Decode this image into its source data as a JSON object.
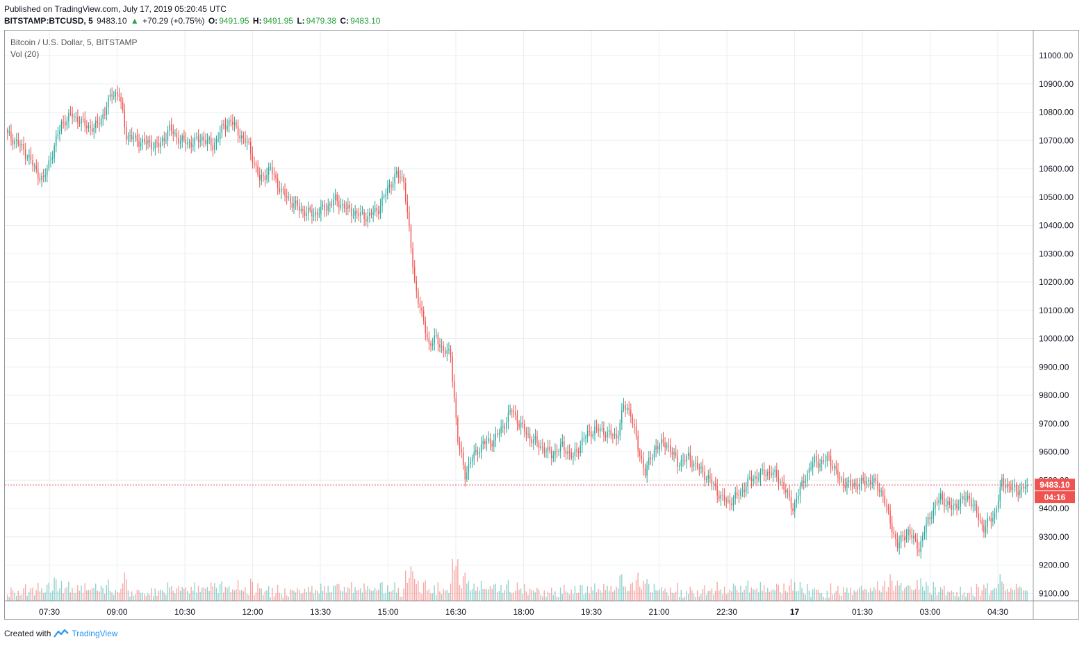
{
  "header": {
    "published": "Published on TradingView.com, July 17, 2019 05:20:45 UTC",
    "symbol": "BITSTAMP:BTCUSD, 5",
    "last": "9483.10",
    "change": "+70.29 (+0.75%)",
    "open_label": "O:",
    "open": "9491.95",
    "high_label": "H:",
    "high": "9491.95",
    "low_label": "L:",
    "low": "9479.38",
    "close_label": "C:",
    "close": "9483.10"
  },
  "legend": {
    "series": "Bitcoin / U.S. Dollar, 5, BITSTAMP",
    "volume": "Vol (20)"
  },
  "footer": {
    "created_with": "Created with",
    "brand": "TradingView"
  },
  "colors": {
    "up": "#26a69a",
    "down": "#ef5350",
    "grid": "#e9eef2",
    "price_line": "#ef5350"
  },
  "chart_data": {
    "type": "candlestick",
    "symbol": "BTCUSD",
    "interval": "5",
    "y_ticks": [
      "11000.00",
      "10900.00",
      "10800.00",
      "10700.00",
      "10600.00",
      "10500.00",
      "10400.00",
      "10300.00",
      "10200.00",
      "10100.00",
      "10000.00",
      "9900.00",
      "9800.00",
      "9700.00",
      "9600.00",
      "9500.00",
      "9400.00",
      "9300.00",
      "9200.00",
      "9100.00"
    ],
    "x_ticks": [
      "07:30",
      "09:00",
      "10:30",
      "12:00",
      "13:30",
      "15:00",
      "16:30",
      "18:00",
      "19:30",
      "21:00",
      "22:30",
      "17",
      "01:30",
      "03:00",
      "04:30"
    ],
    "ylim": [
      9070,
      11080
    ],
    "current_price": "9483.10",
    "countdown": "04:16",
    "close_path": [
      [
        10720,
        0
      ],
      [
        10690,
        6
      ],
      [
        10640,
        12
      ],
      [
        10590,
        16
      ],
      [
        10560,
        20
      ],
      [
        10640,
        24
      ],
      [
        10760,
        30
      ],
      [
        10790,
        36
      ],
      [
        10760,
        42
      ],
      [
        10740,
        48
      ],
      [
        10800,
        54
      ],
      [
        10870,
        58
      ],
      [
        10860,
        62
      ],
      [
        10720,
        66
      ],
      [
        10700,
        72
      ],
      [
        10690,
        78
      ],
      [
        10680,
        84
      ],
      [
        10740,
        90
      ],
      [
        10700,
        96
      ],
      [
        10690,
        102
      ],
      [
        10710,
        108
      ],
      [
        10680,
        114
      ],
      [
        10750,
        120
      ],
      [
        10770,
        124
      ],
      [
        10730,
        128
      ],
      [
        10680,
        134
      ],
      [
        10560,
        140
      ],
      [
        10600,
        146
      ],
      [
        10520,
        152
      ],
      [
        10480,
        158
      ],
      [
        10450,
        164
      ],
      [
        10440,
        170
      ],
      [
        10460,
        176
      ],
      [
        10490,
        182
      ],
      [
        10460,
        188
      ],
      [
        10440,
        194
      ],
      [
        10430,
        200
      ],
      [
        10460,
        206
      ],
      [
        10540,
        212
      ],
      [
        10580,
        216
      ],
      [
        10560,
        220
      ],
      [
        10200,
        226
      ],
      [
        10080,
        230
      ],
      [
        9980,
        234
      ],
      [
        10000,
        238
      ],
      [
        9960,
        242
      ],
      [
        9940,
        246
      ],
      [
        9640,
        250
      ],
      [
        9520,
        254
      ],
      [
        9580,
        258
      ],
      [
        9630,
        264
      ],
      [
        9640,
        270
      ],
      [
        9700,
        276
      ],
      [
        9750,
        280
      ],
      [
        9700,
        284
      ],
      [
        9650,
        290
      ],
      [
        9620,
        296
      ],
      [
        9590,
        302
      ],
      [
        9620,
        308
      ],
      [
        9580,
        314
      ],
      [
        9650,
        320
      ],
      [
        9680,
        326
      ],
      [
        9670,
        332
      ],
      [
        9650,
        338
      ],
      [
        9760,
        342
      ],
      [
        9740,
        346
      ],
      [
        9610,
        350
      ],
      [
        9530,
        354
      ],
      [
        9620,
        360
      ],
      [
        9630,
        366
      ],
      [
        9560,
        372
      ],
      [
        9580,
        378
      ],
      [
        9540,
        384
      ],
      [
        9500,
        390
      ],
      [
        9440,
        396
      ],
      [
        9420,
        400
      ],
      [
        9450,
        406
      ],
      [
        9500,
        412
      ],
      [
        9520,
        418
      ],
      [
        9530,
        424
      ],
      [
        9490,
        430
      ],
      [
        9400,
        436
      ],
      [
        9500,
        442
      ],
      [
        9570,
        448
      ],
      [
        9560,
        452
      ],
      [
        9580,
        456
      ],
      [
        9500,
        462
      ],
      [
        9480,
        468
      ],
      [
        9490,
        474
      ],
      [
        9500,
        480
      ],
      [
        9450,
        486
      ],
      [
        9350,
        490
      ],
      [
        9270,
        494
      ],
      [
        9320,
        500
      ],
      [
        9260,
        506
      ],
      [
        9340,
        510
      ],
      [
        9400,
        514
      ],
      [
        9440,
        518
      ],
      [
        9400,
        524
      ],
      [
        9430,
        530
      ],
      [
        9440,
        534
      ],
      [
        9380,
        538
      ],
      [
        9330,
        542
      ],
      [
        9380,
        548
      ],
      [
        9490,
        552
      ],
      [
        9480,
        556
      ],
      [
        9460,
        560
      ],
      [
        9483,
        566
      ]
    ]
  }
}
